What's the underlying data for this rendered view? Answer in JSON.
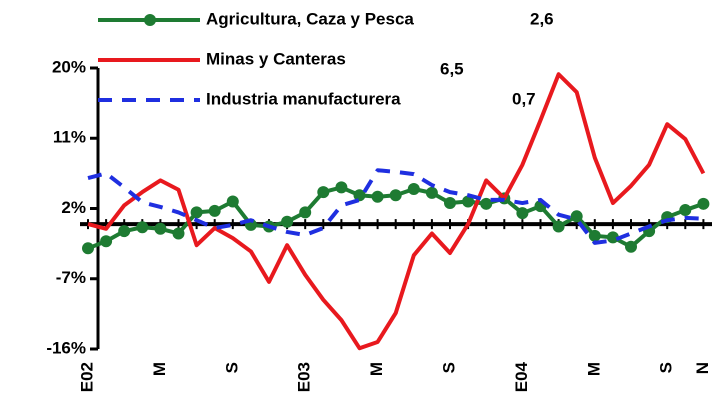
{
  "chart_data": {
    "type": "line",
    "categories": [
      "E02",
      null,
      null,
      null,
      "M",
      null,
      null,
      null,
      "S",
      null,
      null,
      null,
      "E03",
      null,
      null,
      null,
      "M",
      null,
      null,
      null,
      "S",
      null,
      null,
      null,
      "E04",
      null,
      null,
      null,
      "M",
      null,
      null,
      null,
      "S",
      null,
      "N"
    ],
    "series": [
      {
        "name": "Agricultura, Caza y Pesca",
        "legend_note": "2,6",
        "color": "#1e7b32",
        "style": "solid-markers",
        "values": [
          -3.1,
          -2.2,
          -0.9,
          -0.4,
          -0.6,
          -1.2,
          1.5,
          1.7,
          2.9,
          -0.1,
          -0.3,
          0.3,
          1.5,
          4.1,
          4.7,
          3.7,
          3.5,
          3.7,
          4.5,
          4.0,
          2.7,
          2.9,
          2.6,
          3.3,
          1.4,
          2.3,
          -0.3,
          1.0,
          -1.5,
          -1.7,
          -2.9,
          -0.9,
          0.9,
          1.8,
          2.6
        ]
      },
      {
        "name": "Minas y Canteras",
        "legend_note": "6,5",
        "color": "#e8191e",
        "style": "solid",
        "values": [
          0,
          -0.6,
          2.4,
          4.1,
          5.6,
          4.4,
          -2.7,
          -0.5,
          -1.8,
          -3.5,
          -7.4,
          -2.7,
          -6.5,
          -9.7,
          -12.3,
          -15.9,
          -15.1,
          -11.4,
          -4.0,
          -1.2,
          -3.7,
          0,
          5.6,
          3.3,
          7.6,
          13.3,
          19.2,
          16.9,
          8.5,
          2.7,
          4.9,
          7.6,
          12.8,
          10.9,
          6.5
        ]
      },
      {
        "name": "Industria manufacturera",
        "legend_note": "0,7",
        "color": "#1f2fe0",
        "style": "dashed",
        "values": [
          5.9,
          6.5,
          4.7,
          2.8,
          2.2,
          1.5,
          0.5,
          -0.5,
          -0.1,
          0.5,
          -0.3,
          -1.0,
          -1.4,
          -0.5,
          2.4,
          3.1,
          6.9,
          6.7,
          6.4,
          5.0,
          4.1,
          3.7,
          3.1,
          3.1,
          2.7,
          3.1,
          1.2,
          0.6,
          -2.4,
          -2.1,
          -1.2,
          -0.3,
          0.5,
          0.8,
          0.7
        ]
      }
    ],
    "ylim": [
      -16,
      20
    ],
    "yticks": [
      {
        "value": -16,
        "label": "-16%"
      },
      {
        "value": -7,
        "label": "-7%"
      },
      {
        "value": 2,
        "label": "2%"
      },
      {
        "value": 11,
        "label": "11%"
      },
      {
        "value": 20,
        "label": "20%"
      }
    ]
  }
}
